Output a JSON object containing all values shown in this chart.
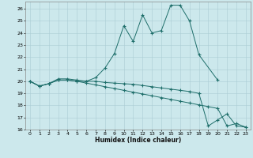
{
  "xlabel": "Humidex (Indice chaleur)",
  "bg_color": "#cce8ec",
  "grid_color": "#aacdd4",
  "line_color": "#1e6e6a",
  "xlim": [
    -0.5,
    23.5
  ],
  "ylim": [
    16,
    26.6
  ],
  "yticks": [
    16,
    17,
    18,
    19,
    20,
    21,
    22,
    23,
    24,
    25,
    26
  ],
  "xticks": [
    0,
    1,
    2,
    3,
    4,
    5,
    6,
    7,
    8,
    9,
    10,
    11,
    12,
    13,
    14,
    15,
    16,
    17,
    18,
    19,
    20,
    21,
    22,
    23
  ],
  "series1_x": [
    0,
    1,
    2,
    3,
    4,
    5,
    6,
    7,
    8,
    9,
    10,
    11,
    12,
    13,
    14,
    15,
    16,
    17,
    18,
    20
  ],
  "series1_y": [
    20.0,
    19.6,
    19.8,
    20.2,
    20.2,
    20.1,
    20.0,
    20.3,
    21.1,
    22.3,
    24.6,
    23.3,
    25.5,
    24.0,
    24.2,
    26.3,
    26.3,
    25.0,
    22.2,
    20.1
  ],
  "series2_x": [
    0,
    1,
    2,
    3,
    4,
    5,
    6,
    7,
    8,
    9,
    10,
    11,
    12,
    13,
    14,
    15,
    16,
    17,
    18,
    19,
    20,
    21,
    22,
    23
  ],
  "series2_y": [
    20.0,
    19.6,
    19.8,
    20.1,
    20.1,
    20.0,
    19.85,
    19.7,
    19.55,
    19.4,
    19.25,
    19.1,
    18.95,
    18.8,
    18.65,
    18.5,
    18.35,
    18.2,
    18.05,
    17.9,
    17.75,
    16.3,
    16.5,
    16.2
  ],
  "series3_x": [
    0,
    1,
    2,
    3,
    4,
    5,
    6,
    7,
    8,
    9,
    10,
    11,
    12,
    13,
    14,
    15,
    16,
    17,
    18,
    19,
    20,
    21,
    22,
    23
  ],
  "series3_y": [
    20.0,
    19.6,
    19.8,
    20.1,
    20.1,
    20.0,
    20.0,
    20.0,
    19.9,
    19.85,
    19.8,
    19.75,
    19.65,
    19.55,
    19.45,
    19.35,
    19.25,
    19.15,
    19.0,
    16.3,
    16.8,
    17.3,
    16.3,
    16.2
  ]
}
